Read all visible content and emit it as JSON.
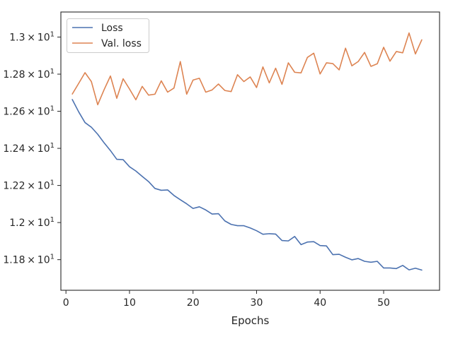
{
  "chart_data": {
    "type": "line",
    "title": "",
    "xlabel": "Epochs",
    "ylabel": "",
    "xlim": [
      -0.8,
      58.8
    ],
    "ylim": [
      11.635,
      13.135
    ],
    "x_ticks": [
      0,
      10,
      20,
      30,
      40,
      50
    ],
    "x_tick_labels": [
      "0",
      "10",
      "20",
      "30",
      "40",
      "50"
    ],
    "y_ticks": [
      11.8,
      12.0,
      12.2,
      12.4,
      12.6,
      12.8,
      13.0
    ],
    "y_tick_labels": [
      {
        "mantissa": "1.18",
        "base": "10",
        "exp": "1"
      },
      {
        "mantissa": "1.2",
        "base": "10",
        "exp": "1"
      },
      {
        "mantissa": "1.22",
        "base": "10",
        "exp": "1"
      },
      {
        "mantissa": "1.24",
        "base": "10",
        "exp": "1"
      },
      {
        "mantissa": "1.26",
        "base": "10",
        "exp": "1"
      },
      {
        "mantissa": "1.28",
        "base": "10",
        "exp": "1"
      },
      {
        "mantissa": "1.3",
        "base": "10",
        "exp": "1"
      }
    ],
    "grid": false,
    "legend_position": "top-left",
    "x": [
      1,
      2,
      3,
      4,
      5,
      6,
      7,
      8,
      9,
      10,
      11,
      12,
      13,
      14,
      15,
      16,
      17,
      18,
      19,
      20,
      21,
      22,
      23,
      24,
      25,
      26,
      27,
      28,
      29,
      30,
      31,
      32,
      33,
      34,
      35,
      36,
      37,
      38,
      39,
      40,
      41,
      42,
      43,
      44,
      45,
      46,
      47,
      48,
      49,
      50,
      51,
      52,
      53,
      54,
      55,
      56
    ],
    "series": [
      {
        "name": "Loss",
        "color": "#4c72b0",
        "values": [
          12.663,
          12.597,
          12.539,
          12.514,
          12.476,
          12.43,
          12.388,
          12.341,
          12.339,
          12.301,
          12.278,
          12.249,
          12.221,
          12.184,
          12.174,
          12.176,
          12.146,
          12.123,
          12.101,
          12.076,
          12.085,
          12.068,
          12.046,
          12.048,
          12.009,
          11.99,
          11.983,
          11.983,
          11.971,
          11.956,
          11.937,
          11.94,
          11.938,
          11.903,
          11.901,
          11.925,
          11.881,
          11.895,
          11.897,
          11.876,
          11.874,
          11.827,
          11.829,
          11.813,
          11.799,
          11.806,
          11.791,
          11.786,
          11.791,
          11.755,
          11.755,
          11.752,
          11.769,
          11.745,
          11.754,
          11.744
        ]
      },
      {
        "name": "Val. loss",
        "color": "#dd8452",
        "values": [
          12.693,
          12.75,
          12.808,
          12.76,
          12.635,
          12.716,
          12.79,
          12.67,
          12.775,
          12.72,
          12.662,
          12.734,
          12.687,
          12.692,
          12.764,
          12.703,
          12.725,
          12.868,
          12.692,
          12.768,
          12.778,
          12.703,
          12.715,
          12.747,
          12.712,
          12.706,
          12.797,
          12.76,
          12.785,
          12.728,
          12.839,
          12.753,
          12.832,
          12.745,
          12.861,
          12.81,
          12.807,
          12.89,
          12.913,
          12.801,
          12.861,
          12.857,
          12.823,
          12.94,
          12.845,
          12.868,
          12.917,
          12.842,
          12.856,
          12.945,
          12.87,
          12.922,
          12.915,
          13.022,
          12.909,
          12.985
        ]
      }
    ]
  }
}
